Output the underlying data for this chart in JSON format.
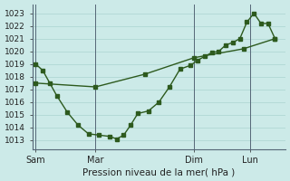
{
  "xlabel": "Pression niveau de la mer( hPa )",
  "ylim": [
    1012.3,
    1023.7
  ],
  "yticks": [
    1013,
    1014,
    1015,
    1016,
    1017,
    1018,
    1019,
    1020,
    1021,
    1022,
    1023
  ],
  "bg_color": "#cceae8",
  "line_color": "#2d5a1e",
  "grid_color": "#b0d8d4",
  "xtick_labels": [
    "Sam",
    "Mar",
    "Dim",
    "Lun"
  ],
  "xtick_positions": [
    0.5,
    9,
    23,
    31
  ],
  "vline_positions": [
    0.5,
    9,
    23,
    31
  ],
  "xlim": [
    0,
    36
  ],
  "jagged_x": [
    0.5,
    1.5,
    2.5,
    3.5,
    5,
    6.5,
    8,
    9.5,
    11,
    12,
    13,
    14,
    15,
    16.5,
    18,
    19.5,
    21,
    22.5,
    23.5,
    24.5,
    25.5,
    26.5,
    27.5,
    28.5,
    29.5,
    30.5,
    31.5,
    32.5,
    33.5,
    34.5
  ],
  "jagged_y": [
    1019,
    1018.5,
    1017.5,
    1016.5,
    1015.2,
    1014.2,
    1013.5,
    1013.4,
    1013.3,
    1013.1,
    1013.4,
    1014.2,
    1015.1,
    1015.3,
    1016.0,
    1017.2,
    1018.6,
    1018.9,
    1019.3,
    1019.6,
    1019.9,
    1020.0,
    1020.5,
    1020.7,
    1021.0,
    1022.3,
    1023.0,
    1022.2,
    1022.2,
    1021.0
  ],
  "trend_x": [
    0.5,
    9,
    16,
    23,
    30,
    34.5
  ],
  "trend_y": [
    1017.5,
    1017.2,
    1018.2,
    1019.5,
    1020.2,
    1021.0
  ]
}
